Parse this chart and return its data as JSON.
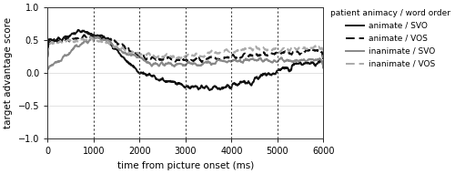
{
  "xlabel": "time from picture onset (ms)",
  "ylabel": "target advantage score",
  "xlim": [
    0,
    6000
  ],
  "ylim": [
    -1.0,
    1.0
  ],
  "yticks": [
    -1.0,
    -0.5,
    0.0,
    0.5,
    1.0
  ],
  "xticks": [
    0,
    1000,
    2000,
    3000,
    4000,
    5000,
    6000
  ],
  "vlines": [
    1000,
    2000,
    3000,
    4000,
    5000
  ],
  "legend_title": "patient animacy / word order",
  "legend_entries": [
    {
      "label": "animate / SVO",
      "color": "#111111",
      "linestyle": "solid",
      "linewidth": 1.4
    },
    {
      "label": "animate / VOS",
      "color": "#111111",
      "linestyle": "dashed",
      "linewidth": 1.4
    },
    {
      "label": "inanimate / SVO",
      "color": "#888888",
      "linestyle": "solid",
      "linewidth": 1.4
    },
    {
      "label": "inanimate / VOS",
      "color": "#aaaaaa",
      "linestyle": "dashed",
      "linewidth": 1.4
    }
  ],
  "bg_color": "#ffffff",
  "grid_color": "#dddddd",
  "figsize": [
    5.0,
    1.91
  ],
  "dpi": 100
}
